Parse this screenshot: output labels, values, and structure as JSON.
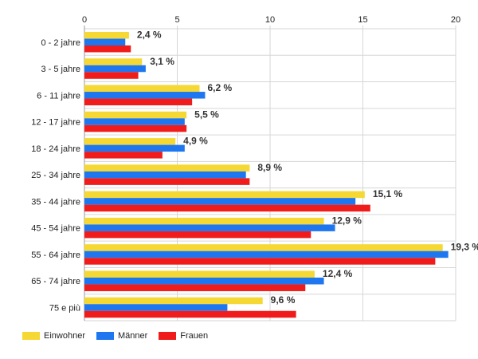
{
  "chart_data": {
    "type": "bar",
    "orientation": "horizontal",
    "categories": [
      "0 - 2 jahre",
      "3 - 5 jahre",
      "6 - 11 jahre",
      "12 - 17 jahre",
      "18 - 24 jahre",
      "25 - 34 jahre",
      "35 - 44 jahre",
      "45 - 54 jahre",
      "55 - 64 jahre",
      "65 - 74 jahre",
      "75 e più"
    ],
    "series": [
      {
        "name": "Einwohner",
        "color": "#f5d833",
        "values": [
          2.4,
          3.1,
          6.2,
          5.5,
          4.9,
          8.9,
          15.1,
          12.9,
          19.3,
          12.4,
          9.6
        ]
      },
      {
        "name": "Männer",
        "color": "#1f77f0",
        "values": [
          2.2,
          3.3,
          6.5,
          5.4,
          5.4,
          8.7,
          14.6,
          13.5,
          19.6,
          12.9,
          7.7
        ]
      },
      {
        "name": "Frauen",
        "color": "#f01b1b",
        "values": [
          2.5,
          2.9,
          5.8,
          5.5,
          4.2,
          8.9,
          15.4,
          12.2,
          18.9,
          11.9,
          11.4
        ]
      }
    ],
    "data_labels": [
      "2,4 %",
      "3,1 %",
      "6,2 %",
      "5,5 %",
      "4,9 %",
      "8,9 %",
      "15,1 %",
      "12,9 %",
      "19,3 %",
      "12,4 %",
      "9,6 %"
    ],
    "xlim": [
      0,
      20
    ],
    "xticks": [
      "0",
      "5",
      "10",
      "15",
      "20"
    ],
    "x_axis_position": "top",
    "grid": true,
    "legend_position": "bottom-left"
  }
}
